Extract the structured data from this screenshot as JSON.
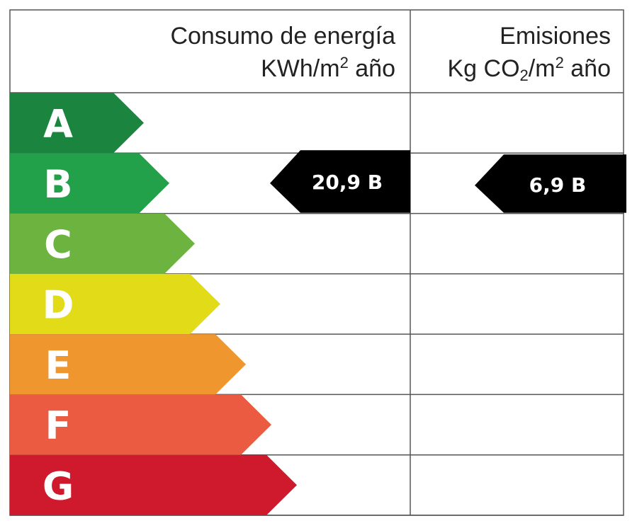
{
  "header": {
    "consumption_title": "Consumo de energía",
    "consumption_unit": [
      "KWh/m",
      "2",
      " año"
    ],
    "emissions_title": "Emisiones",
    "emissions_unit": [
      "Kg CO",
      "2",
      "/m",
      "2",
      " año"
    ]
  },
  "rows": [
    {
      "label": "A",
      "color": "#1b8540"
    },
    {
      "label": "B",
      "color": "#22a04a",
      "consumption": "20,9 B",
      "emissions": "6,9 B"
    },
    {
      "label": "C",
      "color": "#6cb43f"
    },
    {
      "label": "D",
      "color": "#e1dc17"
    },
    {
      "label": "E",
      "color": "#f0962f"
    },
    {
      "label": "F",
      "color": "#ea5b41"
    },
    {
      "label": "G",
      "color": "#cf1a2e"
    }
  ]
}
